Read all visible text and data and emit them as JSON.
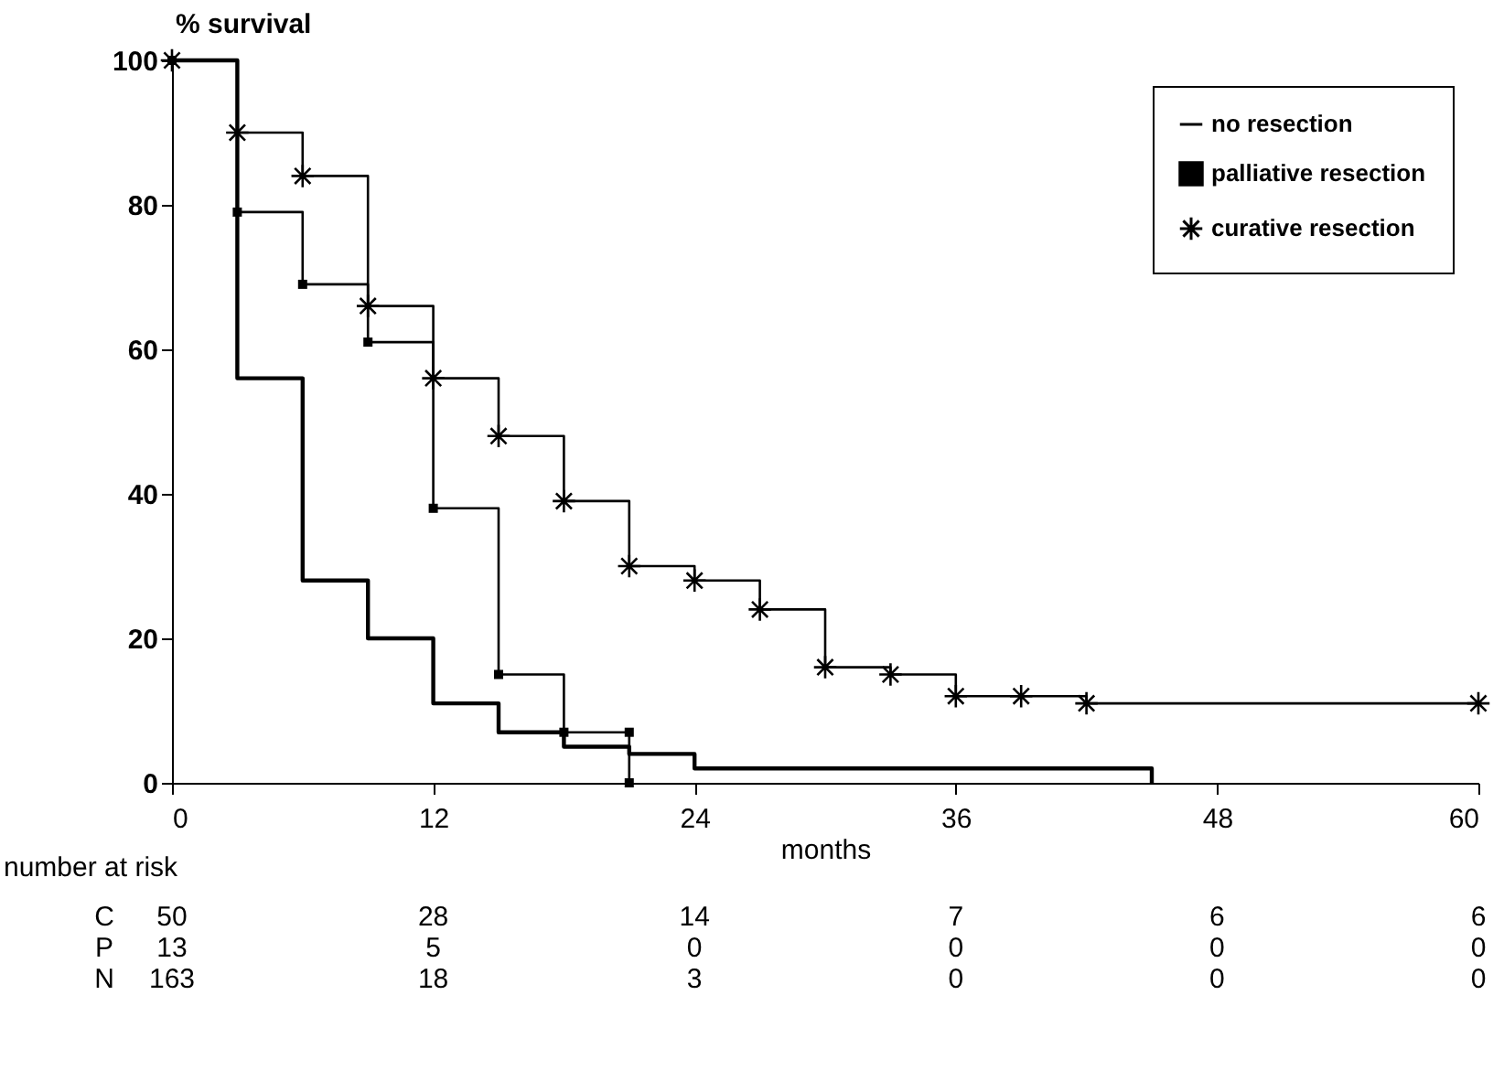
{
  "chart_data": {
    "type": "step",
    "ylabel": "% survival",
    "xlabel": "months",
    "xlim": [
      0,
      60
    ],
    "xticks": [
      0,
      12,
      24,
      36,
      48,
      60
    ],
    "ylim": [
      0,
      100
    ],
    "yticks": [
      0,
      20,
      40,
      60,
      80,
      100
    ],
    "grid": false,
    "legend": "top right",
    "series": [
      {
        "name": "no resection",
        "color": "#000000",
        "marker": "none",
        "x": [
          0,
          3,
          6,
          9,
          12,
          15,
          18,
          21,
          24,
          45,
          45
        ],
        "values": [
          100,
          56,
          28,
          20,
          11,
          7,
          5,
          4,
          2,
          2,
          0
        ]
      },
      {
        "name": "palliative resection",
        "color": "#000000",
        "marker": "square",
        "x": [
          0,
          3,
          6,
          9,
          12,
          15,
          18,
          21,
          21
        ],
        "values": [
          100,
          79,
          69,
          61,
          38,
          15,
          7,
          7,
          0
        ]
      },
      {
        "name": "curative resection",
        "color": "#000000",
        "marker": "cross",
        "x": [
          0,
          3,
          6,
          9,
          12,
          15,
          18,
          21,
          24,
          27,
          30,
          33,
          36,
          39,
          42,
          60
        ],
        "values": [
          100,
          90,
          84,
          66,
          56,
          48,
          39,
          30,
          28,
          24,
          16,
          15,
          12,
          12,
          11,
          11
        ]
      }
    ],
    "annotations": [
      "number at risk",
      "C 50 28 14 7 6 6",
      "P 13 5 0 0 0 0",
      "N 163 18 3 0 0 0"
    ]
  }
}
